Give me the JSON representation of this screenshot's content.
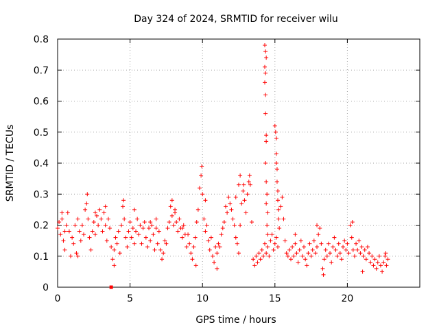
{
  "chart_data": {
    "type": "scatter",
    "title": "Day 324 of 2024, SRMTID for receiver wilu",
    "xlabel": "GPS time / hours",
    "ylabel": "SRMTID / TECUs",
    "xlim": [
      0,
      25
    ],
    "ylim": [
      0,
      0.8
    ],
    "xticks": [
      0,
      5,
      10,
      15,
      20
    ],
    "xtick_labels": [
      "0",
      "5",
      "10",
      "15",
      "20"
    ],
    "yticks": [
      0,
      0.1,
      0.2,
      0.3,
      0.4,
      0.5,
      0.6,
      0.7,
      0.8
    ],
    "ytick_labels": [
      "0",
      "0.1",
      "0.2",
      "0.3",
      "0.4",
      "0.5",
      "0.6",
      "0.7",
      "0.8"
    ],
    "grid": true,
    "marker": "plus",
    "marker_color": "#ff0000",
    "outlier_marker": {
      "x": 3.7,
      "y": 0.0,
      "shape": "square"
    },
    "series": [
      {
        "name": "SRMTID",
        "points": [
          [
            0.0,
            0.19
          ],
          [
            0.1,
            0.21
          ],
          [
            0.2,
            0.17
          ],
          [
            0.3,
            0.22
          ],
          [
            0.4,
            0.15
          ],
          [
            0.5,
            0.12
          ],
          [
            0.6,
            0.2
          ],
          [
            0.7,
            0.24
          ],
          [
            0.8,
            0.18
          ],
          [
            0.9,
            0.1
          ],
          [
            1.0,
            0.16
          ],
          [
            1.1,
            0.14
          ],
          [
            1.2,
            0.2
          ],
          [
            1.3,
            0.11
          ],
          [
            1.4,
            0.22
          ],
          [
            1.5,
            0.18
          ],
          [
            1.6,
            0.15
          ],
          [
            1.7,
            0.2
          ],
          [
            1.8,
            0.17
          ],
          [
            1.9,
            0.25
          ],
          [
            2.0,
            0.27
          ],
          [
            2.1,
            0.22
          ],
          [
            2.2,
            0.16
          ],
          [
            2.3,
            0.12
          ],
          [
            2.4,
            0.18
          ],
          [
            2.5,
            0.21
          ],
          [
            2.6,
            0.17
          ],
          [
            2.7,
            0.23
          ],
          [
            2.8,
            0.2
          ],
          [
            2.9,
            0.25
          ],
          [
            3.0,
            0.22
          ],
          [
            3.1,
            0.18
          ],
          [
            3.2,
            0.24
          ],
          [
            3.3,
            0.2
          ],
          [
            3.4,
            0.15
          ],
          [
            3.5,
            0.22
          ],
          [
            3.6,
            0.19
          ],
          [
            3.7,
            0.13
          ],
          [
            3.8,
            0.09
          ],
          [
            3.9,
            0.12
          ],
          [
            4.0,
            0.16
          ],
          [
            4.1,
            0.14
          ],
          [
            4.2,
            0.18
          ],
          [
            4.3,
            0.11
          ],
          [
            4.4,
            0.2
          ],
          [
            4.5,
            0.26
          ],
          [
            4.6,
            0.22
          ],
          [
            4.7,
            0.16
          ],
          [
            4.8,
            0.13
          ],
          [
            4.9,
            0.18
          ],
          [
            5.0,
            0.21
          ],
          [
            5.1,
            0.16
          ],
          [
            5.2,
            0.19
          ],
          [
            5.3,
            0.14
          ],
          [
            5.4,
            0.18
          ],
          [
            5.5,
            0.22
          ],
          [
            5.6,
            0.17
          ],
          [
            5.7,
            0.2
          ],
          [
            5.8,
            0.14
          ],
          [
            5.9,
            0.19
          ],
          [
            6.0,
            0.21
          ],
          [
            6.1,
            0.16
          ],
          [
            6.2,
            0.13
          ],
          [
            6.3,
            0.19
          ],
          [
            6.4,
            0.15
          ],
          [
            6.5,
            0.2
          ],
          [
            6.6,
            0.17
          ],
          [
            6.7,
            0.12
          ],
          [
            6.8,
            0.19
          ],
          [
            6.9,
            0.14
          ],
          [
            7.0,
            0.18
          ],
          [
            7.1,
            0.12
          ],
          [
            7.2,
            0.09
          ],
          [
            7.3,
            0.11
          ],
          [
            7.4,
            0.15
          ],
          [
            7.5,
            0.14
          ],
          [
            7.6,
            0.19
          ],
          [
            7.7,
            0.21
          ],
          [
            7.8,
            0.26
          ],
          [
            7.9,
            0.23
          ],
          [
            8.0,
            0.2
          ],
          [
            8.1,
            0.24
          ],
          [
            8.2,
            0.21
          ],
          [
            8.3,
            0.18
          ],
          [
            8.4,
            0.22
          ],
          [
            8.5,
            0.19
          ],
          [
            8.6,
            0.16
          ],
          [
            8.7,
            0.2
          ],
          [
            8.8,
            0.17
          ],
          [
            8.9,
            0.13
          ],
          [
            9.0,
            0.17
          ],
          [
            9.1,
            0.14
          ],
          [
            9.2,
            0.11
          ],
          [
            9.3,
            0.09
          ],
          [
            9.4,
            0.13
          ],
          [
            9.5,
            0.16
          ],
          [
            9.6,
            0.21
          ],
          [
            9.7,
            0.25
          ],
          [
            9.8,
            0.32
          ],
          [
            9.9,
            0.36
          ],
          [
            10.0,
            0.3
          ],
          [
            10.1,
            0.22
          ],
          [
            10.2,
            0.18
          ],
          [
            10.3,
            0.2
          ],
          [
            10.4,
            0.15
          ],
          [
            10.5,
            0.12
          ],
          [
            10.6,
            0.16
          ],
          [
            10.7,
            0.1
          ],
          [
            10.8,
            0.08
          ],
          [
            10.9,
            0.13
          ],
          [
            11.0,
            0.11
          ],
          [
            11.1,
            0.14
          ],
          [
            11.2,
            0.13
          ],
          [
            11.3,
            0.17
          ],
          [
            11.4,
            0.19
          ],
          [
            11.5,
            0.21
          ],
          [
            11.6,
            0.26
          ],
          [
            11.7,
            0.24
          ],
          [
            11.8,
            0.29
          ],
          [
            11.9,
            0.27
          ],
          [
            12.0,
            0.25
          ],
          [
            12.1,
            0.22
          ],
          [
            12.2,
            0.2
          ],
          [
            12.3,
            0.16
          ],
          [
            12.4,
            0.14
          ],
          [
            12.5,
            0.11
          ],
          [
            12.6,
            0.2
          ],
          [
            12.7,
            0.27
          ],
          [
            12.8,
            0.31
          ],
          [
            12.9,
            0.28
          ],
          [
            13.0,
            0.24
          ],
          [
            13.1,
            0.3
          ],
          [
            13.2,
            0.34
          ],
          [
            13.3,
            0.33
          ],
          [
            13.4,
            0.21
          ],
          [
            13.5,
            0.09
          ],
          [
            13.6,
            0.07
          ],
          [
            13.7,
            0.1
          ],
          [
            13.8,
            0.08
          ],
          [
            13.9,
            0.11
          ],
          [
            14.0,
            0.09
          ],
          [
            14.1,
            0.12
          ],
          [
            14.2,
            0.1
          ],
          [
            14.3,
            0.14
          ],
          [
            14.4,
            0.11
          ],
          [
            14.5,
            0.13
          ],
          [
            14.6,
            0.1
          ],
          [
            14.7,
            0.15
          ],
          [
            14.8,
            0.17
          ],
          [
            14.9,
            0.12
          ],
          [
            15.0,
            0.14
          ],
          [
            15.1,
            0.16
          ],
          [
            15.2,
            0.13
          ],
          [
            15.3,
            0.19
          ],
          [
            15.4,
            0.26
          ],
          [
            15.5,
            0.29
          ],
          [
            15.6,
            0.22
          ],
          [
            15.7,
            0.15
          ],
          [
            15.8,
            0.11
          ],
          [
            15.9,
            0.1
          ],
          [
            16.0,
            0.12
          ],
          [
            16.1,
            0.09
          ],
          [
            16.2,
            0.13
          ],
          [
            16.3,
            0.1
          ],
          [
            16.4,
            0.14
          ],
          [
            16.5,
            0.11
          ],
          [
            16.6,
            0.08
          ],
          [
            16.7,
            0.12
          ],
          [
            16.8,
            0.15
          ],
          [
            16.9,
            0.1
          ],
          [
            17.0,
            0.13
          ],
          [
            17.1,
            0.09
          ],
          [
            17.2,
            0.07
          ],
          [
            17.3,
            0.11
          ],
          [
            17.4,
            0.14
          ],
          [
            17.5,
            0.1
          ],
          [
            17.6,
            0.12
          ],
          [
            17.7,
            0.15
          ],
          [
            17.8,
            0.11
          ],
          [
            17.9,
            0.13
          ],
          [
            18.0,
            0.17
          ],
          [
            18.1,
            0.19
          ],
          [
            18.2,
            0.14
          ],
          [
            18.3,
            0.06
          ],
          [
            18.4,
            0.09
          ],
          [
            18.5,
            0.12
          ],
          [
            18.6,
            0.1
          ],
          [
            18.7,
            0.14
          ],
          [
            18.8,
            0.11
          ],
          [
            18.9,
            0.08
          ],
          [
            19.0,
            0.13
          ],
          [
            19.1,
            0.16
          ],
          [
            19.2,
            0.12
          ],
          [
            19.3,
            0.1
          ],
          [
            19.4,
            0.14
          ],
          [
            19.5,
            0.11
          ],
          [
            19.6,
            0.09
          ],
          [
            19.7,
            0.13
          ],
          [
            19.8,
            0.15
          ],
          [
            19.9,
            0.12
          ],
          [
            20.0,
            0.14
          ],
          [
            20.1,
            0.11
          ],
          [
            20.2,
            0.2
          ],
          [
            20.3,
            0.16
          ],
          [
            20.4,
            0.12
          ],
          [
            20.5,
            0.1
          ],
          [
            20.6,
            0.14
          ],
          [
            20.7,
            0.12
          ],
          [
            20.8,
            0.15
          ],
          [
            20.9,
            0.11
          ],
          [
            21.0,
            0.13
          ],
          [
            21.1,
            0.1
          ],
          [
            21.2,
            0.12
          ],
          [
            21.3,
            0.09
          ],
          [
            21.4,
            0.13
          ],
          [
            21.5,
            0.11
          ],
          [
            21.6,
            0.08
          ],
          [
            21.7,
            0.1
          ],
          [
            21.8,
            0.07
          ],
          [
            21.9,
            0.09
          ],
          [
            22.0,
            0.06
          ],
          [
            22.1,
            0.08
          ],
          [
            22.2,
            0.1
          ],
          [
            22.3,
            0.07
          ],
          [
            22.4,
            0.05
          ],
          [
            22.5,
            0.08
          ],
          [
            22.6,
            0.1
          ],
          [
            22.7,
            0.07
          ],
          [
            22.8,
            0.09
          ],
          [
            14.3,
            0.78
          ],
          [
            14.35,
            0.76
          ],
          [
            14.4,
            0.74
          ],
          [
            14.3,
            0.71
          ],
          [
            14.35,
            0.69
          ],
          [
            14.3,
            0.66
          ],
          [
            14.35,
            0.62
          ],
          [
            14.35,
            0.56
          ],
          [
            14.4,
            0.49
          ],
          [
            14.4,
            0.47
          ],
          [
            14.35,
            0.4
          ],
          [
            14.4,
            0.34
          ],
          [
            14.45,
            0.3
          ],
          [
            14.4,
            0.27
          ],
          [
            14.5,
            0.24
          ],
          [
            14.45,
            0.2
          ],
          [
            14.5,
            0.17
          ],
          [
            15.0,
            0.52
          ],
          [
            15.05,
            0.5
          ],
          [
            15.1,
            0.48
          ],
          [
            15.1,
            0.43
          ],
          [
            15.1,
            0.4
          ],
          [
            15.15,
            0.38
          ],
          [
            15.15,
            0.34
          ],
          [
            15.2,
            0.31
          ],
          [
            15.2,
            0.28
          ],
          [
            15.25,
            0.25
          ],
          [
            15.25,
            0.22
          ],
          [
            0.3,
            0.24
          ],
          [
            0.5,
            0.18
          ],
          [
            1.4,
            0.1
          ],
          [
            2.05,
            0.3
          ],
          [
            2.6,
            0.24
          ],
          [
            3.3,
            0.26
          ],
          [
            4.55,
            0.28
          ],
          [
            6.4,
            0.21
          ],
          [
            7.9,
            0.28
          ],
          [
            8.1,
            0.25
          ],
          [
            9.95,
            0.39
          ],
          [
            10.2,
            0.28
          ],
          [
            11.0,
            0.06
          ],
          [
            12.3,
            0.29
          ],
          [
            12.5,
            0.33
          ],
          [
            12.6,
            0.36
          ],
          [
            12.85,
            0.33
          ],
          [
            13.25,
            0.36
          ],
          [
            16.4,
            0.17
          ],
          [
            17.9,
            0.2
          ],
          [
            18.35,
            0.04
          ],
          [
            20.35,
            0.21
          ],
          [
            21.05,
            0.05
          ],
          [
            22.65,
            0.11
          ],
          [
            6.8,
            0.22
          ],
          [
            9.55,
            0.07
          ],
          [
            3.9,
            0.07
          ],
          [
            5.3,
            0.25
          ],
          [
            8.6,
            0.19
          ]
        ]
      }
    ]
  }
}
